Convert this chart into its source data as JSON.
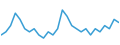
{
  "values": [
    3,
    4,
    6,
    10,
    8,
    5,
    4,
    5,
    3,
    2,
    4,
    3,
    5,
    11,
    9,
    6,
    5,
    4,
    5,
    3,
    5,
    4,
    6,
    5,
    8,
    7
  ],
  "line_color": "#3a9fd5",
  "background_color": "#ffffff",
  "linewidth": 1.1
}
